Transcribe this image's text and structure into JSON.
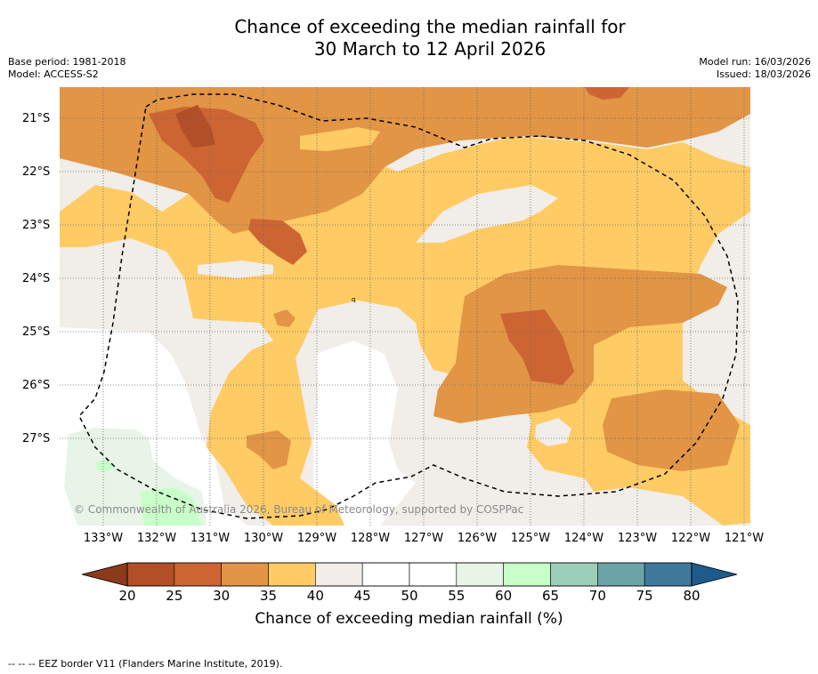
{
  "title": {
    "line1": "Chance of exceeding the median rainfall for",
    "line2": "30 March to 12 April 2026"
  },
  "meta": {
    "base_period": "Base period: 1981-2018",
    "model": "Model: ACCESS-S2",
    "model_run": "Model run: 16/03/2026",
    "issued": "Issued: 18/03/2026"
  },
  "map": {
    "copyright": "© Commonwealth of Australia 2026, Bureau of Meteorology, supported by COSPPac",
    "latitude_labels": [
      "21°S",
      "22°S",
      "23°S",
      "24°S",
      "25°S",
      "26°S",
      "27°S"
    ],
    "longitude_labels": [
      "133°W",
      "132°W",
      "131°W",
      "130°W",
      "129°W",
      "128°W",
      "127°W",
      "126°W",
      "125°W",
      "124°W",
      "123°W",
      "122°W",
      "121°W"
    ],
    "stray_label": "q"
  },
  "colorbar": {
    "label": "Chance of exceeding median rainfall (%)",
    "ticks": [
      "20",
      "25",
      "30",
      "35",
      "40",
      "45",
      "50",
      "55",
      "60",
      "65",
      "70",
      "75",
      "80"
    ],
    "colors": [
      "#b24f28",
      "#cd6533",
      "#e19545",
      "#fecb65",
      "#f1ede8",
      "#ffffff",
      "#ffffff",
      "#e8f4e7",
      "#c8ffc8",
      "#9ccfb9",
      "#6ba4a6",
      "#40789b"
    ],
    "under_color": "#8c3a1b",
    "over_color": "#1e5a8a"
  },
  "footnote": "-- -- -- EEZ border V11 (Flanders Marine Institute, 2019)."
}
